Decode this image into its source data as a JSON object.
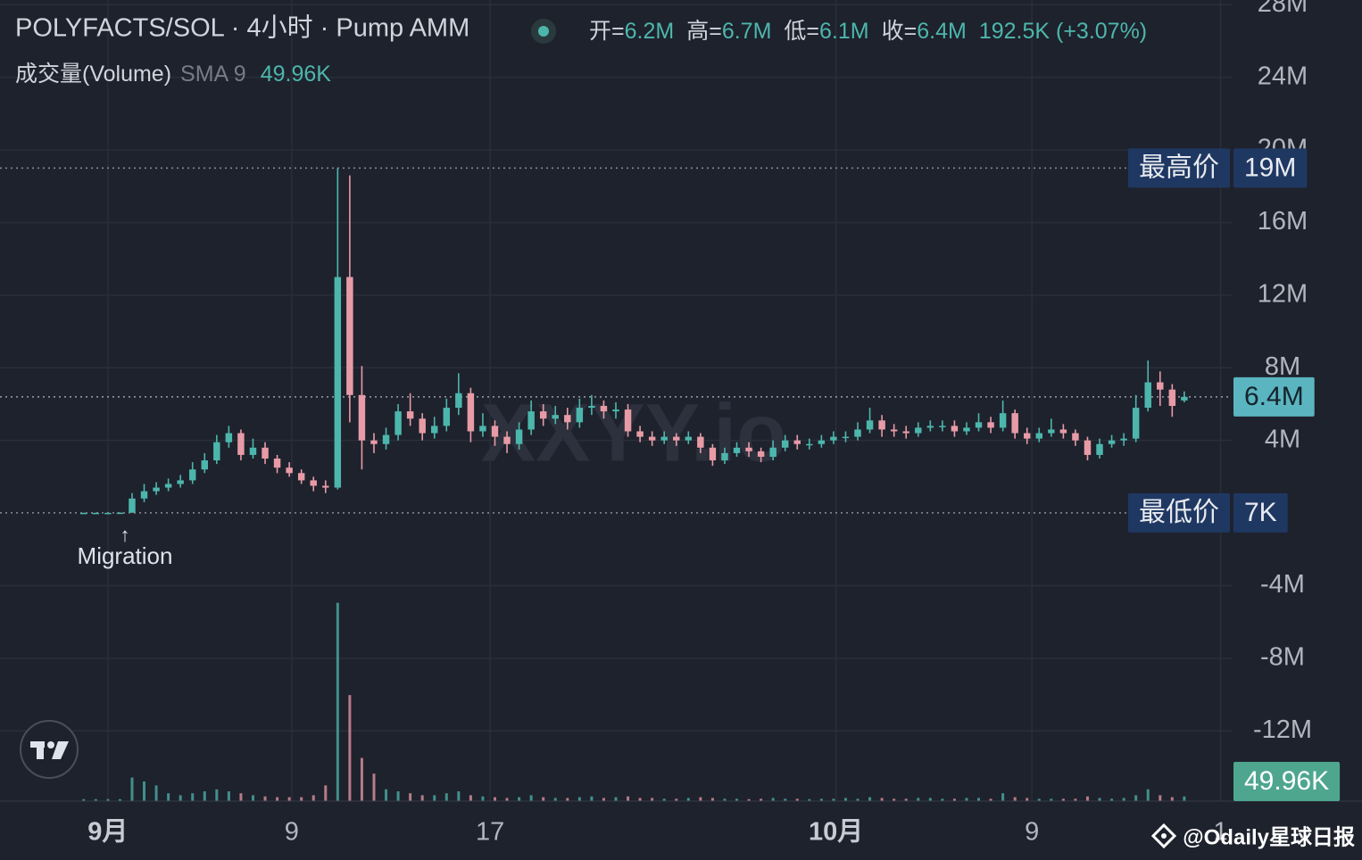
{
  "chart_data": {
    "type": "candlestick",
    "title": "POLYFACTS/SOL · 4小时 · Pump AMM",
    "legend_ohlc": [
      {
        "label": "开=",
        "value": "6.2M"
      },
      {
        "label": "高=",
        "value": "6.7M"
      },
      {
        "label": "低=",
        "value": "6.1M"
      },
      {
        "label": "收=",
        "value": "6.4M"
      }
    ],
    "change": "192.5K (+3.07%)",
    "volume_title": "成交量(Volume)",
    "sma_label": "SMA 9",
    "volume_sma": {
      "value": 49.96,
      "label": "49.96K"
    },
    "annotation": {
      "arrow": "↑",
      "text": "Migration"
    },
    "watermark": "XXYY.io",
    "footer": "@Odaily星球日报",
    "up_color": "#4db6ac",
    "down_color": "#e79ba6",
    "grid": true,
    "xlim": [
      -4.46,
      46.46
    ],
    "xticks": [
      {
        "value": 0,
        "label": "9月",
        "bold": true
      },
      {
        "value": 7.6,
        "label": "9"
      },
      {
        "value": 15.8,
        "label": "17"
      },
      {
        "value": 30.1,
        "label": "10月",
        "bold": true
      },
      {
        "value": 38.2,
        "label": "9"
      },
      {
        "value": 46,
        "label": "1"
      }
    ],
    "ylim": [
      -15.87,
      28.26
    ],
    "yticks": [
      {
        "value": 28,
        "label": "28M"
      },
      {
        "value": 24,
        "label": "24M"
      },
      {
        "value": 20,
        "label": "20M"
      },
      {
        "value": 16,
        "label": "16M"
      },
      {
        "value": 12,
        "label": "12M"
      },
      {
        "value": 8,
        "label": "8M"
      },
      {
        "value": 4,
        "label": "4M"
      },
      {
        "value": -4,
        "label": "-4M"
      },
      {
        "value": -8,
        "label": "-8M"
      },
      {
        "value": -12,
        "label": "-12M"
      }
    ],
    "markers": [
      {
        "label": "最高价",
        "value": 19,
        "value_label": "19M"
      },
      {
        "label": "最低价",
        "value": 0.007,
        "value_label": "7K"
      }
    ],
    "last_price": {
      "value": 6.4,
      "label": "6.4M"
    },
    "volume_ylim": [
      0,
      2040
    ],
    "x": [
      -1,
      -0.5,
      0,
      0.5,
      1,
      1.5,
      2,
      2.5,
      3,
      3.5,
      4,
      4.5,
      5,
      5.5,
      6,
      6.5,
      7,
      7.5,
      8,
      8.5,
      9,
      9.5,
      10,
      10.5,
      11,
      11.5,
      12,
      12.5,
      13,
      13.5,
      14,
      14.5,
      15,
      15.5,
      16,
      16.5,
      17,
      17.5,
      18,
      18.5,
      19,
      19.5,
      20,
      20.5,
      21,
      21.5,
      22,
      22.5,
      23,
      23.5,
      24,
      24.5,
      25,
      25.5,
      26,
      26.5,
      27,
      27.5,
      28,
      28.5,
      29,
      29.5,
      30,
      30.5,
      31,
      31.5,
      32,
      32.5,
      33,
      33.5,
      34,
      34.5,
      35,
      35.5,
      36,
      36.5,
      37,
      37.5,
      38,
      38.5,
      39,
      39.5,
      40,
      40.5,
      41,
      41.5,
      42,
      42.5,
      43,
      43.5,
      44,
      44.5
    ],
    "open": [
      0.007,
      0.01,
      0.01,
      0.01,
      0.02,
      0.8,
      1.2,
      1.4,
      1.6,
      1.8,
      2.4,
      2.9,
      3.9,
      4.4,
      3.2,
      3.6,
      3.0,
      2.5,
      2.2,
      1.8,
      1.5,
      1.4,
      13.0,
      6.5,
      4.0,
      3.8,
      4.3,
      5.6,
      5.2,
      4.4,
      4.8,
      5.8,
      6.6,
      4.5,
      4.8,
      4.2,
      3.8,
      4.6,
      5.6,
      5.2,
      5.4,
      5.0,
      5.8,
      5.9,
      5.6,
      5.7,
      4.5,
      4.2,
      4.0,
      4.2,
      4.0,
      4.2,
      3.6,
      2.9,
      3.3,
      3.6,
      3.4,
      3.1,
      3.6,
      4.0,
      3.8,
      3.8,
      4.0,
      4.2,
      4.2,
      4.6,
      5.1,
      4.6,
      4.5,
      4.4,
      4.7,
      4.8,
      4.8,
      4.5,
      4.7,
      5.0,
      4.7,
      5.5,
      4.4,
      4.1,
      4.4,
      4.6,
      4.4,
      4.0,
      3.2,
      3.8,
      4.0,
      4.1,
      5.8,
      7.2,
      6.8,
      6.2
    ],
    "high": [
      0.02,
      0.02,
      0.02,
      0.03,
      1.1,
      1.6,
      1.7,
      1.9,
      2.1,
      2.8,
      3.3,
      4.3,
      4.8,
      4.6,
      4.1,
      3.9,
      3.2,
      2.8,
      2.4,
      2.0,
      1.8,
      19.0,
      18.6,
      8.1,
      4.4,
      4.7,
      6.0,
      6.6,
      5.5,
      5.3,
      6.3,
      7.7,
      6.9,
      5.5,
      5.1,
      4.5,
      5.0,
      6.2,
      6.0,
      5.9,
      5.8,
      6.3,
      6.5,
      6.2,
      6.1,
      6.0,
      4.8,
      4.5,
      4.5,
      4.4,
      4.5,
      4.4,
      3.8,
      3.6,
      3.9,
      3.9,
      3.6,
      4.0,
      4.3,
      4.3,
      4.1,
      4.3,
      4.5,
      4.5,
      5.0,
      5.8,
      5.4,
      4.9,
      4.8,
      5.0,
      5.1,
      5.1,
      5.1,
      5.0,
      5.5,
      5.3,
      6.2,
      5.7,
      4.7,
      4.7,
      5.2,
      4.9,
      4.6,
      4.2,
      4.1,
      4.3,
      4.4,
      6.5,
      8.4,
      7.8,
      7.1,
      6.7
    ],
    "low": [
      0.007,
      0.007,
      0.007,
      0.007,
      0.01,
      0.6,
      1.0,
      1.2,
      1.4,
      1.6,
      2.2,
      2.7,
      3.6,
      2.9,
      3.0,
      2.7,
      2.2,
      2.0,
      1.6,
      1.2,
      1.1,
      1.3,
      5.0,
      2.4,
      3.3,
      3.5,
      4.0,
      4.8,
      4.0,
      4.1,
      4.5,
      5.4,
      3.9,
      4.2,
      3.7,
      3.3,
      3.5,
      4.3,
      4.8,
      4.9,
      4.6,
      4.7,
      5.4,
      5.2,
      5.2,
      4.2,
      3.9,
      3.7,
      3.8,
      3.7,
      3.8,
      3.3,
      2.6,
      2.7,
      3.1,
      3.1,
      2.8,
      2.9,
      3.4,
      3.5,
      3.5,
      3.6,
      3.8,
      3.9,
      4.0,
      4.4,
      4.2,
      4.2,
      4.1,
      4.2,
      4.5,
      4.5,
      4.2,
      4.3,
      4.5,
      4.4,
      4.5,
      4.1,
      3.8,
      3.9,
      4.2,
      4.1,
      3.7,
      2.9,
      3.0,
      3.6,
      3.7,
      3.9,
      5.6,
      5.9,
      5.3,
      6.1
    ],
    "close": [
      0.01,
      0.01,
      0.01,
      0.02,
      0.8,
      1.2,
      1.4,
      1.6,
      1.8,
      2.4,
      2.9,
      3.9,
      4.4,
      3.2,
      3.6,
      3.0,
      2.5,
      2.2,
      1.8,
      1.5,
      1.4,
      13.0,
      6.5,
      4.0,
      3.8,
      4.3,
      5.6,
      5.2,
      4.4,
      4.8,
      5.8,
      6.6,
      4.5,
      4.8,
      4.2,
      3.8,
      4.6,
      5.6,
      5.2,
      5.4,
      5.0,
      5.8,
      5.9,
      5.6,
      5.7,
      4.5,
      4.2,
      4.0,
      4.2,
      4.0,
      4.2,
      3.6,
      2.9,
      3.3,
      3.6,
      3.4,
      3.1,
      3.6,
      4.0,
      3.8,
      3.8,
      4.0,
      4.2,
      4.2,
      4.6,
      5.1,
      4.6,
      4.5,
      4.4,
      4.7,
      4.8,
      4.8,
      4.5,
      4.7,
      5.0,
      4.7,
      5.5,
      4.4,
      4.1,
      4.4,
      4.6,
      4.4,
      4.0,
      3.2,
      3.8,
      4.0,
      4.1,
      5.8,
      7.2,
      6.8,
      5.9,
      6.4
    ],
    "volume": [
      5,
      5,
      5,
      5,
      60,
      50,
      40,
      20,
      15,
      20,
      25,
      30,
      25,
      20,
      15,
      12,
      10,
      10,
      10,
      15,
      40,
      505,
      270,
      110,
      70,
      30,
      25,
      20,
      15,
      15,
      20,
      25,
      15,
      12,
      10,
      8,
      10,
      15,
      10,
      8,
      8,
      10,
      12,
      8,
      10,
      12,
      8,
      8,
      6,
      6,
      8,
      10,
      8,
      6,
      6,
      5,
      6,
      8,
      6,
      6,
      5,
      6,
      6,
      8,
      6,
      10,
      8,
      6,
      6,
      8,
      8,
      6,
      6,
      8,
      8,
      6,
      20,
      10,
      8,
      6,
      6,
      6,
      6,
      12,
      8,
      6,
      8,
      15,
      30,
      15,
      10,
      12
    ]
  }
}
